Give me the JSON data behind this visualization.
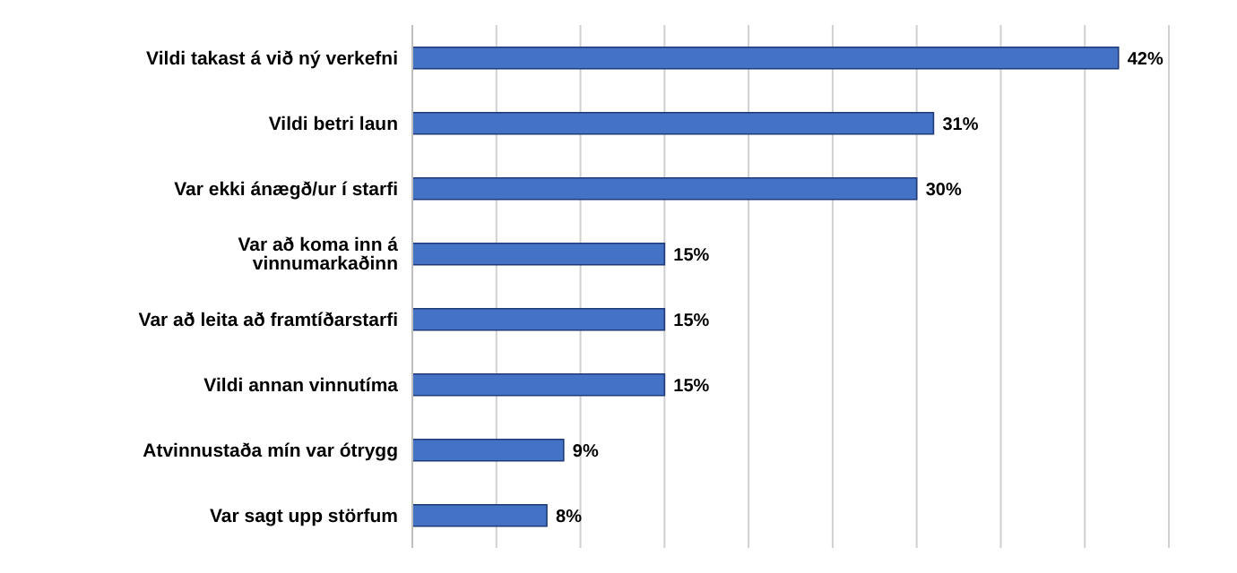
{
  "chart_data": {
    "type": "bar",
    "orientation": "horizontal",
    "categories": [
      "Vildi takast á við ný verkefni",
      "Vildi betri laun",
      "Var ekki ánægð/ur í starfi",
      "Var að koma inn á vinnumarkaðinn",
      "Var að leita að framtíðarstarfi",
      "Vildi annan vinnutíma",
      "Atvinnustaða mín var ótrygg",
      "Var sagt upp störfum"
    ],
    "values": [
      42,
      31,
      30,
      15,
      15,
      15,
      9,
      8
    ],
    "value_labels": [
      "42%",
      "31%",
      "30%",
      "15%",
      "15%",
      "15%",
      "9%",
      "8%"
    ],
    "color": "#4472c4",
    "xlim": [
      0,
      45
    ],
    "xticks": [
      {
        "value": 0,
        "label": null
      },
      {
        "value": 5,
        "label": null
      },
      {
        "value": 10,
        "label": null
      },
      {
        "value": 15,
        "label": null
      },
      {
        "value": 20,
        "label": null
      },
      {
        "value": 25,
        "label": null
      },
      {
        "value": 30,
        "label": null
      },
      {
        "value": 35,
        "label": null
      },
      {
        "value": 40,
        "label": null
      },
      {
        "value": 45,
        "label": null
      }
    ],
    "tick_labels": "y",
    "grid": "x"
  }
}
